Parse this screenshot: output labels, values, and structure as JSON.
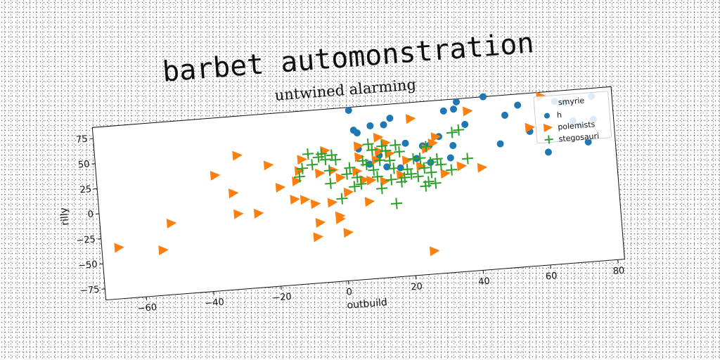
{
  "title": "barbet automonstration",
  "chart_data": {
    "type": "scatter",
    "title": "untwined alarming",
    "xlabel": "outbuild",
    "ylabel": "rilly",
    "xlim": [
      -72,
      82
    ],
    "ylim": [
      -86,
      86
    ],
    "xticks": [
      -60,
      -40,
      -20,
      0,
      20,
      40,
      60,
      80
    ],
    "yticks": [
      -75,
      -50,
      -25,
      0,
      25,
      50,
      75
    ],
    "legend": {
      "title": "smyrie",
      "position": "top-right"
    },
    "grid": false,
    "series": [
      {
        "name": "h",
        "marker": "circle",
        "color": "#1f77b4",
        "points": [
          [
            4,
            83
          ],
          [
            5,
            63
          ],
          [
            6,
            60
          ],
          [
            6,
            44
          ],
          [
            10,
            66
          ],
          [
            12,
            36
          ],
          [
            14,
            66
          ],
          [
            14,
            24
          ],
          [
            16,
            72
          ],
          [
            20,
            46
          ],
          [
            25,
            42
          ],
          [
            27,
            42
          ],
          [
            27,
            25
          ],
          [
            32,
            75
          ],
          [
            33,
            28
          ],
          [
            34,
            40
          ],
          [
            35,
            76
          ],
          [
            36,
            83
          ],
          [
            38,
            60
          ],
          [
            44,
            86
          ],
          [
            48,
            38
          ],
          [
            50,
            66
          ],
          [
            54,
            75
          ],
          [
            57,
            48
          ],
          [
            62,
            26
          ],
          [
            65,
            76
          ],
          [
            68,
            74
          ],
          [
            70,
            55
          ],
          [
            72,
            50
          ],
          [
            74,
            33
          ],
          [
            76,
            55
          ],
          [
            76,
            78
          ],
          [
            9,
            28
          ],
          [
            23,
            30
          ],
          [
            30,
            50
          ],
          [
            18,
            22
          ]
        ]
      },
      {
        "name": "polemists",
        "marker": "triangle-right",
        "color": "#ff7f0e",
        "points": [
          [
            -67,
            -35
          ],
          [
            -54,
            -41
          ],
          [
            -51,
            -15
          ],
          [
            -37,
            29
          ],
          [
            -32,
            10
          ],
          [
            -31,
            -11
          ],
          [
            -30,
            47
          ],
          [
            -25,
            -12
          ],
          [
            -21,
            35
          ],
          [
            -18,
            12
          ],
          [
            -13,
            17
          ],
          [
            -12,
            27
          ],
          [
            -11,
            38
          ],
          [
            -11,
            -2
          ],
          [
            -8,
            -7
          ],
          [
            -8,
            -40
          ],
          [
            -7,
            -26
          ],
          [
            -6,
            23
          ],
          [
            -4,
            45
          ],
          [
            -3,
            -7
          ],
          [
            -2,
            25
          ],
          [
            -1,
            -24
          ],
          [
            -1,
            -21
          ],
          [
            0,
            17
          ],
          [
            1,
            -38
          ],
          [
            2,
            2
          ],
          [
            5,
            22
          ],
          [
            6,
            36
          ],
          [
            6,
            47
          ],
          [
            7,
            13
          ],
          [
            8,
            -9
          ],
          [
            9,
            12
          ],
          [
            11,
            32
          ],
          [
            12,
            40
          ],
          [
            12,
            54
          ],
          [
            13,
            10
          ],
          [
            14,
            48
          ],
          [
            15,
            37
          ],
          [
            18,
            15
          ],
          [
            20,
            29
          ],
          [
            22,
            70
          ],
          [
            24,
            22
          ],
          [
            26,
            39
          ],
          [
            26,
            -63
          ],
          [
            28,
            44
          ],
          [
            29,
            50
          ],
          [
            31,
            13
          ],
          [
            36,
            19
          ],
          [
            39,
            73
          ],
          [
            42,
            16
          ],
          [
            57,
            52
          ],
          [
            61,
            82
          ],
          [
            -14,
            -1
          ]
        ]
      },
      {
        "name": "stegosauri",
        "marker": "plus",
        "color": "#2ca02c",
        "points": [
          [
            -12,
            21
          ],
          [
            -11,
            29
          ],
          [
            -9,
            43
          ],
          [
            -8,
            32
          ],
          [
            -6,
            39
          ],
          [
            -5,
            42
          ],
          [
            -4,
            36
          ],
          [
            -3,
            25
          ],
          [
            -3,
            12
          ],
          [
            -2,
            40
          ],
          [
            -1,
            35
          ],
          [
            0,
            -4
          ],
          [
            2,
            20
          ],
          [
            3,
            26
          ],
          [
            4,
            7
          ],
          [
            5,
            16
          ],
          [
            6,
            9
          ],
          [
            7,
            32
          ],
          [
            8,
            28
          ],
          [
            9,
            48
          ],
          [
            10,
            42
          ],
          [
            10,
            22
          ],
          [
            11,
            15
          ],
          [
            12,
            31
          ],
          [
            12,
            3
          ],
          [
            13,
            45
          ],
          [
            14,
            40
          ],
          [
            15,
            30
          ],
          [
            15,
            11
          ],
          [
            16,
            22
          ],
          [
            16,
            -13
          ],
          [
            17,
            45
          ],
          [
            18,
            38
          ],
          [
            18,
            8
          ],
          [
            19,
            12
          ],
          [
            20,
            20
          ],
          [
            21,
            15
          ],
          [
            22,
            30
          ],
          [
            23,
            12
          ],
          [
            24,
            30
          ],
          [
            25,
            2
          ],
          [
            25,
            20
          ],
          [
            26,
            41
          ],
          [
            27,
            15
          ],
          [
            27,
            25
          ],
          [
            28,
            4
          ],
          [
            29,
            28
          ],
          [
            30,
            22
          ],
          [
            33,
            16
          ],
          [
            34,
            53
          ],
          [
            36,
            55
          ],
          [
            38,
            26
          ],
          [
            26,
            6
          ]
        ]
      }
    ]
  }
}
